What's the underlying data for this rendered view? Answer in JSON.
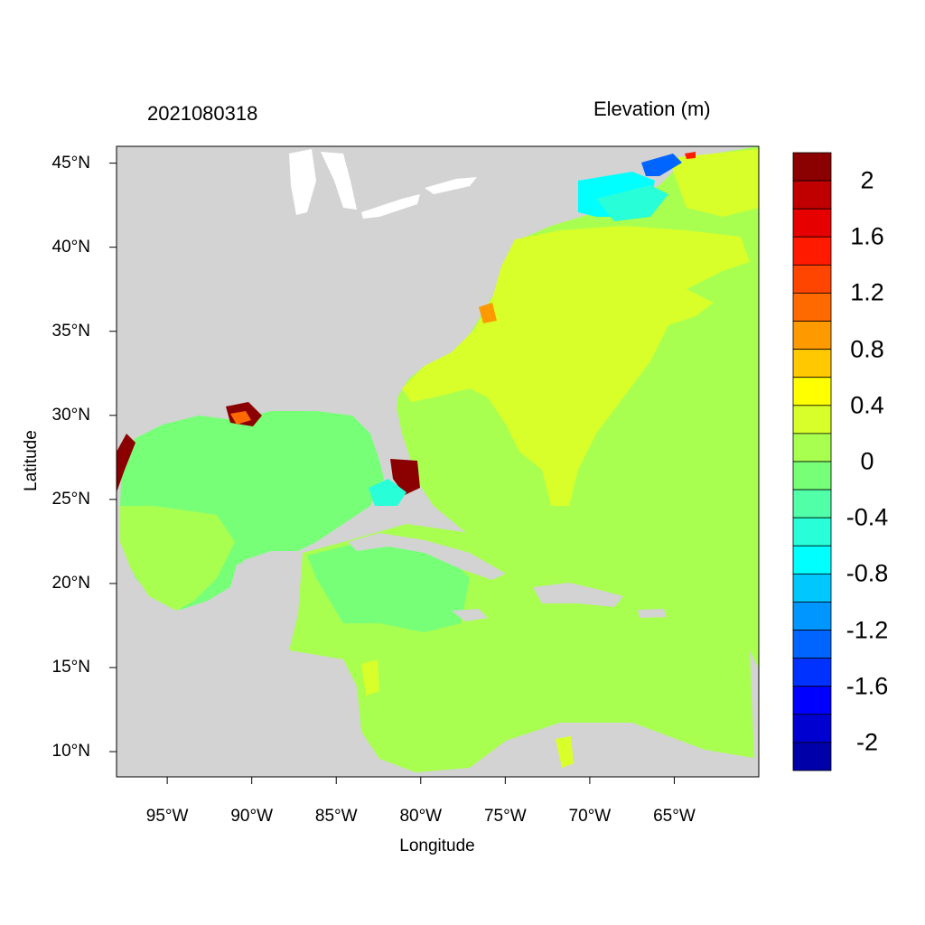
{
  "title_left": "2021080318",
  "title_right": "Elevation (m)",
  "xlabel": "Longitude",
  "ylabel": "Latitude",
  "map": {
    "lon_range": [
      -98,
      -60
    ],
    "lat_range": [
      8.5,
      46
    ],
    "xticks": [
      "95°W",
      "90°W",
      "85°W",
      "80°W",
      "75°W",
      "70°W",
      "65°W"
    ],
    "xtick_values": [
      -95,
      -90,
      -85,
      -80,
      -75,
      -70,
      -65
    ],
    "yticks": [
      "45°N",
      "40°N",
      "35°N",
      "30°N",
      "25°N",
      "20°N",
      "15°N",
      "10°N"
    ],
    "ytick_values": [
      45,
      40,
      35,
      30,
      25,
      20,
      15,
      10
    ],
    "land_color": "#d3d3d3",
    "variable": "water surface elevation"
  },
  "colorbar": {
    "labels": [
      "2",
      "1.6",
      "1.2",
      "0.8",
      "0.4",
      "0",
      "-0.4",
      "-0.8",
      "-1.2",
      "-1.6",
      "-2"
    ],
    "colors_top_to_bottom": [
      "#8b0000",
      "#c00000",
      "#e60000",
      "#ff1a00",
      "#ff4500",
      "#ff6a00",
      "#ff9900",
      "#ffc800",
      "#ffff00",
      "#d8ff2a",
      "#a8ff50",
      "#78ff78",
      "#50ffa8",
      "#28ffd8",
      "#00ffff",
      "#00c8ff",
      "#0096ff",
      "#0064ff",
      "#0032ff",
      "#0000ff",
      "#0000d0",
      "#0000a8"
    ]
  }
}
